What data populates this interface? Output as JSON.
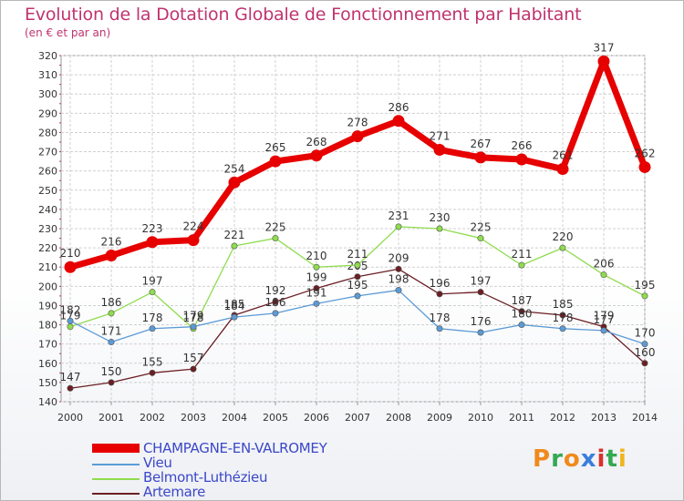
{
  "header": {
    "title": "Evolution de la Dotation Globale de Fonctionnement par Habitant",
    "subtitle": "(en € et par an)"
  },
  "chart_data": {
    "type": "line",
    "title": "Evolution de la Dotation Globale de Fonctionnement par Habitant",
    "subtitle": "(en € et par an)",
    "xlabel": "",
    "ylabel": "",
    "ylim": [
      140,
      320
    ],
    "y_ticks": [
      140,
      150,
      160,
      170,
      180,
      190,
      200,
      210,
      220,
      230,
      240,
      250,
      260,
      270,
      280,
      290,
      300,
      310,
      320
    ],
    "x": [
      "2000",
      "2001",
      "2002",
      "2003",
      "2004",
      "2005",
      "2006",
      "2007",
      "2008",
      "2009",
      "2010",
      "2011",
      "2012",
      "2013",
      "2014"
    ],
    "grid": true,
    "legend_position": "bottom-left",
    "series": [
      {
        "name": "Artemare",
        "color": "#6b1f24",
        "values": [
          147,
          150,
          155,
          157,
          185,
          192,
          199,
          205,
          209,
          196,
          197,
          187,
          185,
          179,
          160
        ],
        "labels": [
          "147",
          "150",
          "155",
          "157",
          "185",
          "192",
          "199",
          "205",
          "209",
          "196",
          "197",
          "187",
          "185",
          "179",
          "160"
        ]
      },
      {
        "name": "Belmont-Luthézieu",
        "color": "#8fdc4e",
        "values": [
          179,
          186,
          197,
          178,
          221,
          225,
          210,
          211,
          231,
          230,
          225,
          211,
          220,
          206,
          195
        ],
        "labels": [
          "179",
          "186",
          "197",
          "178",
          "221",
          "225",
          "210",
          "211",
          "231",
          "230",
          "225",
          "211",
          "220",
          "206",
          "195"
        ]
      },
      {
        "name": "Vieu",
        "color": "#5b9bd5",
        "values": [
          182,
          171,
          178,
          179,
          184,
          186,
          191,
          195,
          198,
          178,
          176,
          180,
          178,
          177,
          170
        ],
        "labels": [
          "182",
          "171",
          "178",
          "179",
          "184",
          "186",
          "191",
          "195",
          "198",
          "178",
          "176",
          "180",
          "178",
          "177",
          "170"
        ]
      },
      {
        "name": "CHAMPAGNE-EN-VALROMEY",
        "color": "#e60000",
        "values": [
          210,
          216,
          223,
          224,
          254,
          265,
          268,
          278,
          286,
          271,
          267,
          266,
          261,
          317,
          262
        ],
        "labels": [
          "210",
          "216",
          "223",
          "224",
          "254",
          "265",
          "268",
          "278",
          "286",
          "271",
          "267",
          "266",
          "261",
          "317",
          "262"
        ]
      }
    ],
    "legend": [
      {
        "name": "CHAMPAGNE-EN-VALROMEY",
        "color": "#e60000"
      },
      {
        "name": "Vieu",
        "color": "#5b9bd5"
      },
      {
        "name": "Belmont-Luthézieu",
        "color": "#8fdc4e"
      },
      {
        "name": "Artemare",
        "color": "#6b1f24"
      }
    ]
  },
  "logo": {
    "letters": [
      "P",
      "r",
      "o",
      "x",
      "i",
      "t",
      "i"
    ],
    "colors": [
      "#f08a1c",
      "#35a852",
      "#f08a1c",
      "#3b7ddd",
      "#d9302c",
      "#35a852",
      "#f0b41c"
    ]
  }
}
